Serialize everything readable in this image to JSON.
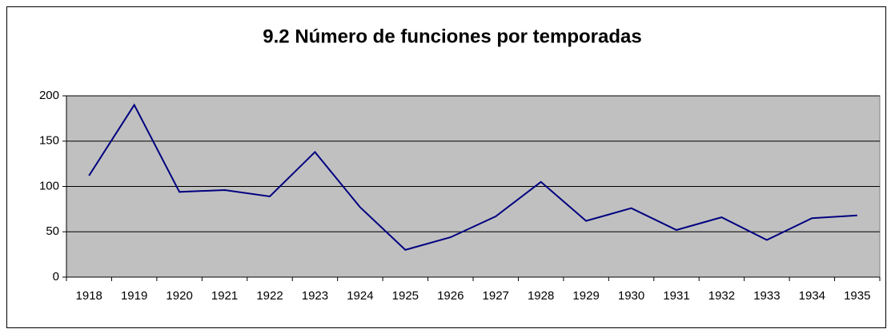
{
  "chart_data": {
    "type": "line",
    "title": "9.2 Número de funciones por temporadas",
    "categories": [
      "1918",
      "1919",
      "1920",
      "1921",
      "1922",
      "1923",
      "1924",
      "1925",
      "1926",
      "1927",
      "1928",
      "1929",
      "1930",
      "1931",
      "1932",
      "1933",
      "1934",
      "1935"
    ],
    "values": [
      112,
      190,
      94,
      96,
      89,
      138,
      77,
      30,
      44,
      67,
      105,
      62,
      76,
      52,
      66,
      41,
      65,
      68
    ],
    "color": "#000080",
    "ylim": [
      0,
      200
    ],
    "yticks": [
      0,
      50,
      100,
      150,
      200
    ],
    "grid": true
  }
}
